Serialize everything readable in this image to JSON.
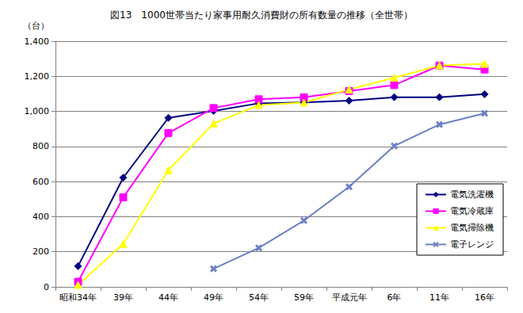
{
  "chart_data": {
    "type": "line",
    "title": "図13　1000世帯当たり家事用耐久消費財の所有数量の推移（全世帯）",
    "ylabel": "（台）",
    "categories": [
      "昭和34年",
      "39年",
      "44年",
      "49年",
      "54年",
      "59年",
      "平成元年",
      "6年",
      "11年",
      "16年"
    ],
    "series": [
      {
        "name": "電気洗濯機",
        "color": "#000080",
        "marker": "diamond",
        "values": [
          118,
          622,
          963,
          1003,
          1046,
          1051,
          1061,
          1081,
          1081,
          1098
        ]
      },
      {
        "name": "電気冷蔵庫",
        "color": "#ff00ff",
        "marker": "square",
        "values": [
          29,
          510,
          877,
          1019,
          1069,
          1080,
          1116,
          1150,
          1261,
          1239
        ]
      },
      {
        "name": "電気掃除機",
        "color": "#ffff00",
        "marker": "triangle",
        "values": [
          11,
          245,
          665,
          931,
          1036,
          1050,
          1125,
          1192,
          1262,
          1271
        ]
      },
      {
        "name": "電子レンジ",
        "color": "#6b7fc4",
        "marker": "x",
        "values": [
          null,
          null,
          null,
          103,
          222,
          378,
          570,
          803,
          925,
          989
        ]
      }
    ],
    "ylim": [
      0,
      1400
    ],
    "yticks": [
      0,
      200,
      400,
      600,
      800,
      {
        "value": 1000,
        "label": "1,000"
      },
      {
        "value": 1200,
        "label": "1,200"
      },
      {
        "value": 1400,
        "label": "1,400"
      }
    ],
    "grid": true,
    "legend": "lower right"
  }
}
